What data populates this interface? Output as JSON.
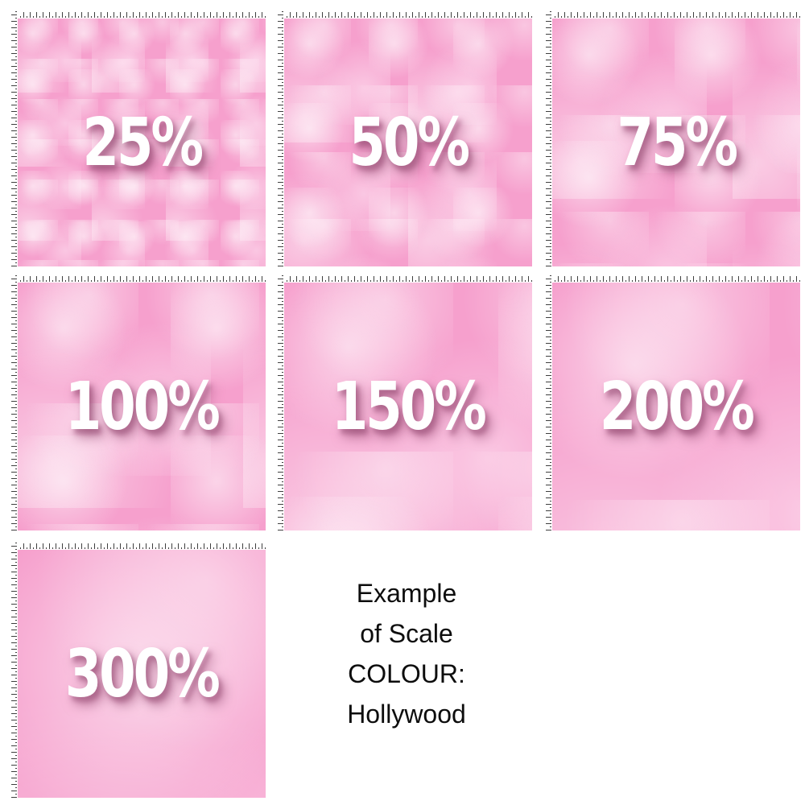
{
  "colors": {
    "page_bg": "#ffffff",
    "fabric_base": "#f6a0cd",
    "fabric_blotch": "rgba(255,255,255,0.55)",
    "fabric_blotch_soft": "rgba(255,238,248,0.50)",
    "label_color": "#ffffff",
    "label_shadow": "rgba(150,75,115,0.60)",
    "caption_color": "#0d0d0d",
    "ruler_bg": "#ffffff",
    "ruler_tick": "#3f3f3f"
  },
  "swatches": [
    {
      "label": "25%",
      "scale": 25
    },
    {
      "label": "50%",
      "scale": 50
    },
    {
      "label": "75%",
      "scale": 75
    },
    {
      "label": "100%",
      "scale": 100
    },
    {
      "label": "150%",
      "scale": 150
    },
    {
      "label": "200%",
      "scale": 200
    },
    {
      "label": "300%",
      "scale": 300
    }
  ],
  "caption": {
    "lines": [
      "Example",
      "of Scale",
      "COLOUR:",
      "Hollywood"
    ]
  }
}
